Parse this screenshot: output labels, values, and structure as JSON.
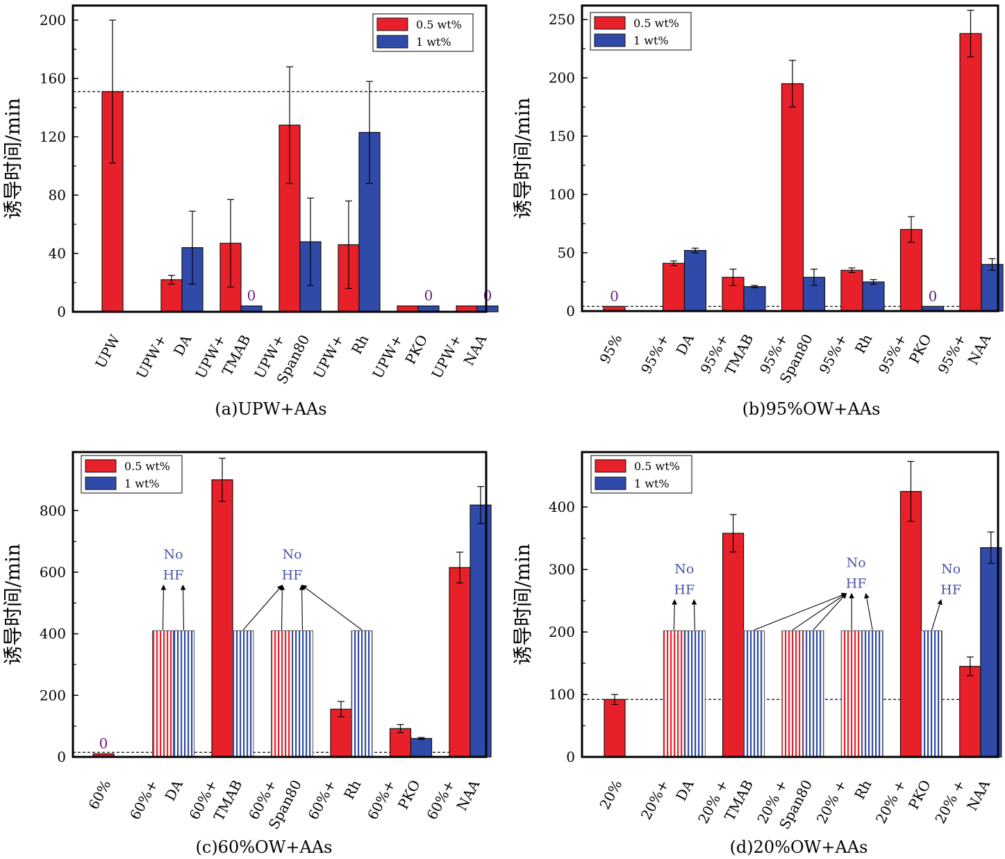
{
  "colors": {
    "red": "#e8202a",
    "blue": "#2f4aa8",
    "text_purple": "#6a1b86",
    "hf_text": "#4a52a8"
  },
  "legend": [
    "0.5 wt%",
    "1 wt%"
  ],
  "chart_data": [
    {
      "type": "bar",
      "caption": "(a)UPW+AAs",
      "ylabel": "诱导时间/min",
      "ylim": [
        0,
        210
      ],
      "yticks": [
        0,
        40,
        80,
        120,
        160,
        200
      ],
      "ref_line": 151,
      "categories": [
        [
          "UPW"
        ],
        [
          "UPW+",
          "DA"
        ],
        [
          "UPW+",
          "TMAB"
        ],
        [
          "UPW+",
          "Span80"
        ],
        [
          "UPW+",
          "Rh"
        ],
        [
          "UPW+",
          "PKO"
        ],
        [
          "UPW+",
          "NAA"
        ]
      ],
      "series": [
        {
          "name": "0.5 wt%",
          "values": [
            151,
            22,
            47,
            128,
            46,
            4,
            4
          ],
          "errors": [
            49,
            3,
            30,
            40,
            30,
            0,
            0
          ]
        },
        {
          "name": "1 wt%",
          "values": [
            null,
            44,
            4,
            48,
            123,
            4,
            4
          ],
          "errors": [
            0,
            25,
            0,
            30,
            35,
            0,
            0
          ]
        }
      ],
      "zero_labels": [
        {
          "text": "0",
          "category": 2,
          "series": 1
        },
        {
          "text": "0",
          "category": 5,
          "series": 1
        },
        {
          "text": "0",
          "category": 6,
          "series": 1
        }
      ],
      "annotations": []
    },
    {
      "type": "bar",
      "caption": "(b)95%OW+AAs",
      "ylabel": "诱导时间/min",
      "ylim": [
        0,
        262
      ],
      "yticks": [
        0,
        50,
        100,
        150,
        200,
        250
      ],
      "ref_line": 4,
      "categories": [
        [
          "95%"
        ],
        [
          "95%+",
          "DA"
        ],
        [
          "95%+",
          "TMAB"
        ],
        [
          "95%+",
          "Span80"
        ],
        [
          "95%+",
          "Rh"
        ],
        [
          "95%+",
          "PKO"
        ],
        [
          "95%+",
          "NAA"
        ]
      ],
      "series": [
        {
          "name": "0.5 wt%",
          "values": [
            4,
            41,
            29,
            195,
            35,
            70,
            238
          ],
          "errors": [
            0,
            2,
            7,
            20,
            2,
            11,
            20
          ]
        },
        {
          "name": "1 wt%",
          "values": [
            null,
            52,
            21,
            29,
            25,
            4,
            40
          ],
          "errors": [
            0,
            2,
            1,
            7,
            2,
            0,
            5
          ]
        }
      ],
      "zero_labels": [
        {
          "text": "0",
          "category": 0,
          "series": 0
        },
        {
          "text": "0",
          "category": 5,
          "series": 1
        }
      ],
      "annotations": []
    },
    {
      "type": "bar",
      "caption": "(c)60%OW+AAs",
      "ylabel": "诱导时间/min",
      "ylim": [
        0,
        990
      ],
      "yticks": [
        0,
        200,
        400,
        600,
        800
      ],
      "ref_line": 15,
      "categories": [
        [
          "60%"
        ],
        [
          "60%+",
          "DA"
        ],
        [
          "60%+",
          "TMAB"
        ],
        [
          "60%+",
          "Span80"
        ],
        [
          "60%+",
          "Rh"
        ],
        [
          "60%+",
          "PKO"
        ],
        [
          "60%+",
          "NAA"
        ]
      ],
      "series": [
        {
          "name": "0.5 wt%",
          "values": [
            10,
            410,
            900,
            410,
            155,
            92,
            615
          ],
          "errors": [
            0,
            0,
            70,
            0,
            25,
            13,
            50
          ],
          "hatched": [
            false,
            true,
            false,
            true,
            false,
            false,
            false
          ]
        },
        {
          "name": "1 wt%",
          "values": [
            null,
            410,
            410,
            410,
            410,
            60,
            818
          ],
          "errors": [
            0,
            0,
            0,
            0,
            0,
            3,
            60
          ],
          "hatched": [
            false,
            true,
            true,
            true,
            true,
            false,
            false
          ]
        }
      ],
      "zero_labels": [
        {
          "text": "0",
          "category": 0,
          "series": 0
        }
      ],
      "annotations": [
        {
          "line1": "No",
          "line2": "HF",
          "value": 585,
          "x_cat": 1,
          "x_off": 0,
          "arrows_to": [
            [
              1,
              0
            ],
            [
              1,
              1
            ]
          ]
        },
        {
          "line1": "No",
          "line2": "HF",
          "value": 585,
          "x_cat": 3,
          "x_off": 0,
          "arrows_to": [
            [
              2,
              1
            ],
            [
              3,
              0
            ],
            [
              3,
              1
            ],
            [
              4,
              1
            ]
          ]
        }
      ]
    },
    {
      "type": "bar",
      "caption": "(d)20%OW+AAs",
      "ylabel": "诱导时间/min",
      "ylim": [
        0,
        488
      ],
      "yticks": [
        0,
        100,
        200,
        300,
        400
      ],
      "ref_line": 92,
      "categories": [
        [
          "20%"
        ],
        [
          "20%+",
          "DA"
        ],
        [
          "20% +",
          "TMAB"
        ],
        [
          "20% +",
          "Span80"
        ],
        [
          "20% +",
          "Rh"
        ],
        [
          "20% +",
          "PKO"
        ],
        [
          "20% +",
          "NAA"
        ]
      ],
      "series": [
        {
          "name": "0.5 wt%",
          "values": [
            92,
            202,
            358,
            202,
            202,
            425,
            145
          ],
          "errors": [
            8,
            0,
            30,
            0,
            0,
            48,
            15
          ],
          "hatched": [
            false,
            true,
            false,
            true,
            true,
            false,
            false
          ]
        },
        {
          "name": "1 wt%",
          "values": [
            null,
            202,
            202,
            202,
            202,
            202,
            335
          ],
          "errors": [
            0,
            0,
            0,
            0,
            0,
            0,
            25
          ],
          "hatched": [
            false,
            true,
            true,
            true,
            true,
            true,
            false
          ]
        }
      ],
      "zero_labels": [],
      "annotations": [
        {
          "line1": "No",
          "line2": "HF",
          "value": 265,
          "x_cat": 1,
          "x_off": 0,
          "arrows_to": [
            [
              1,
              0
            ],
            [
              1,
              1
            ]
          ]
        },
        {
          "line1": "No",
          "line2": "HF",
          "value": 275,
          "x_cat": 3,
          "x_off": 0.9,
          "arrows_to": [
            [
              2,
              1
            ],
            [
              3,
              0
            ],
            [
              3,
              1
            ],
            [
              4,
              0
            ],
            [
              4,
              1
            ]
          ]
        },
        {
          "line1": "No",
          "line2": "HF",
          "value": 265,
          "x_cat": 5,
          "x_off": 0.5,
          "arrows_to": [
            [
              5,
              1
            ]
          ]
        }
      ]
    }
  ]
}
